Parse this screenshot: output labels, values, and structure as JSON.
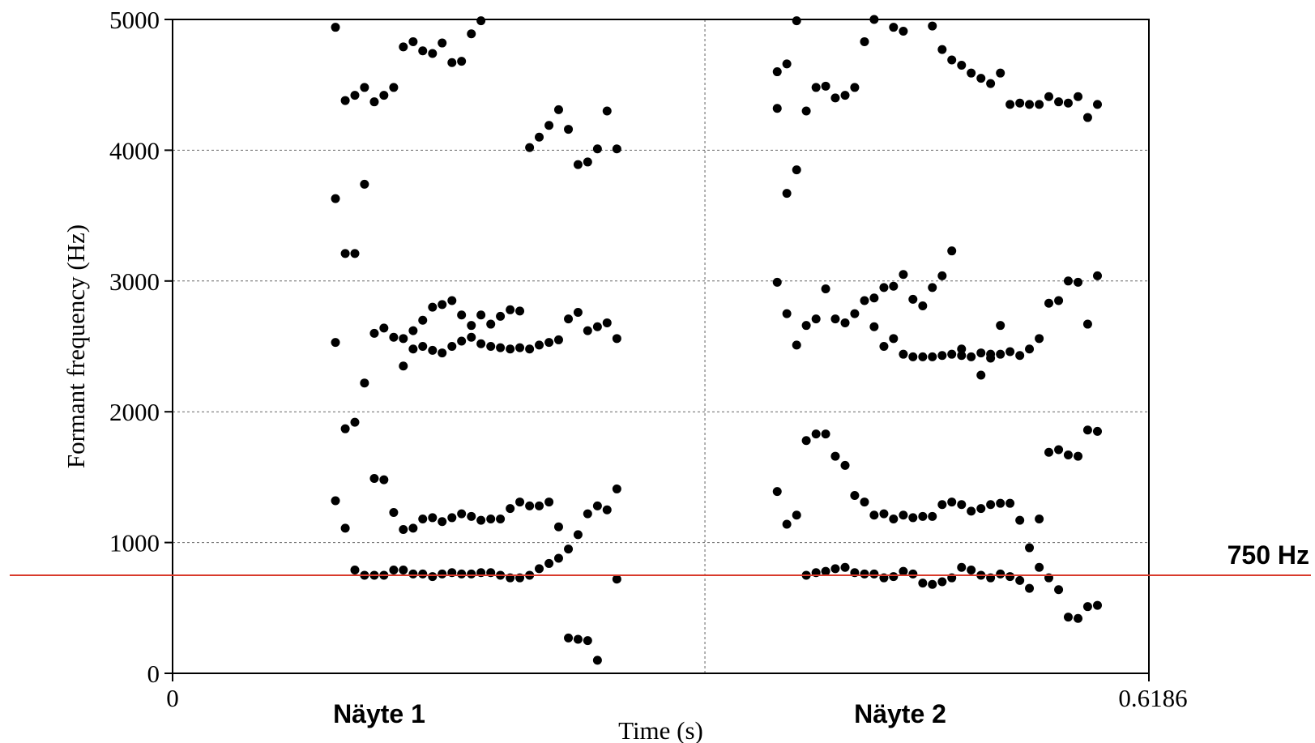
{
  "chart_data": {
    "type": "scatter",
    "xlabel": "Time (s)",
    "ylabel": "Formant frequency (Hz)",
    "xlim": [
      0,
      0.6186
    ],
    "ylim": [
      0,
      5000
    ],
    "x_tick_labels": [
      "0",
      "0.6186"
    ],
    "y_ticks": [
      0,
      1000,
      2000,
      3000,
      4000,
      5000
    ],
    "y_tick_labels": [
      "0",
      "1000",
      "2000",
      "3000",
      "4000",
      "5000"
    ],
    "grid": "dotted horizontal at y ticks, dotted vertical at segment boundary",
    "segment_boundary_x": 0.3373,
    "segments": [
      {
        "label": "Näyte 1",
        "x_center": 0.1309
      },
      {
        "label": "Näyte 2",
        "x_center": 0.461
      }
    ],
    "reference_line": {
      "value": 750,
      "label": "750 Hz",
      "color": "#d93a2b"
    },
    "marker_color": "#000000",
    "points": [
      [
        0.1032,
        4940
      ],
      [
        0.1032,
        3630
      ],
      [
        0.1032,
        2530
      ],
      [
        0.1032,
        1320
      ],
      [
        0.1094,
        4380
      ],
      [
        0.1094,
        3210
      ],
      [
        0.1094,
        1870
      ],
      [
        0.1094,
        1110
      ],
      [
        0.1155,
        4420
      ],
      [
        0.1155,
        3210
      ],
      [
        0.1155,
        1920
      ],
      [
        0.1155,
        790
      ],
      [
        0.1216,
        4480
      ],
      [
        0.1216,
        3740
      ],
      [
        0.1216,
        2220
      ],
      [
        0.1216,
        750
      ],
      [
        0.1278,
        4370
      ],
      [
        0.1278,
        2600
      ],
      [
        0.1278,
        1490
      ],
      [
        0.1278,
        750
      ],
      [
        0.1339,
        4420
      ],
      [
        0.1339,
        2640
      ],
      [
        0.1339,
        1480
      ],
      [
        0.1339,
        750
      ],
      [
        0.1401,
        4480
      ],
      [
        0.1401,
        2570
      ],
      [
        0.1401,
        1230
      ],
      [
        0.1401,
        790
      ],
      [
        0.1462,
        4790
      ],
      [
        0.1462,
        2560
      ],
      [
        0.1462,
        2350
      ],
      [
        0.1462,
        1100
      ],
      [
        0.1462,
        790
      ],
      [
        0.1524,
        4830
      ],
      [
        0.1524,
        2620
      ],
      [
        0.1524,
        2480
      ],
      [
        0.1524,
        1110
      ],
      [
        0.1524,
        760
      ],
      [
        0.1585,
        4760
      ],
      [
        0.1585,
        2700
      ],
      [
        0.1585,
        2500
      ],
      [
        0.1585,
        1180
      ],
      [
        0.1585,
        760
      ],
      [
        0.1647,
        4740
      ],
      [
        0.1647,
        2800
      ],
      [
        0.1647,
        2470
      ],
      [
        0.1647,
        1190
      ],
      [
        0.1647,
        740
      ],
      [
        0.1708,
        4820
      ],
      [
        0.1708,
        2820
      ],
      [
        0.1708,
        2450
      ],
      [
        0.1708,
        1160
      ],
      [
        0.1708,
        760
      ],
      [
        0.177,
        4670
      ],
      [
        0.177,
        2850
      ],
      [
        0.177,
        2500
      ],
      [
        0.177,
        1190
      ],
      [
        0.177,
        770
      ],
      [
        0.1831,
        4680
      ],
      [
        0.1831,
        2740
      ],
      [
        0.1831,
        2540
      ],
      [
        0.1831,
        1220
      ],
      [
        0.1831,
        760
      ],
      [
        0.1893,
        4890
      ],
      [
        0.1893,
        2660
      ],
      [
        0.1893,
        2570
      ],
      [
        0.1893,
        1200
      ],
      [
        0.1893,
        760
      ],
      [
        0.1954,
        4990
      ],
      [
        0.1954,
        2740
      ],
      [
        0.1954,
        2520
      ],
      [
        0.1954,
        1170
      ],
      [
        0.1954,
        770
      ],
      [
        0.2016,
        2670
      ],
      [
        0.2016,
        2500
      ],
      [
        0.2016,
        1180
      ],
      [
        0.2016,
        770
      ],
      [
        0.2077,
        2730
      ],
      [
        0.2077,
        2490
      ],
      [
        0.2077,
        1180
      ],
      [
        0.2077,
        750
      ],
      [
        0.2139,
        2780
      ],
      [
        0.2139,
        2480
      ],
      [
        0.2139,
        1260
      ],
      [
        0.2139,
        730
      ],
      [
        0.22,
        2770
      ],
      [
        0.22,
        2490
      ],
      [
        0.22,
        1310
      ],
      [
        0.22,
        730
      ],
      [
        0.2262,
        4020
      ],
      [
        0.2262,
        2480
      ],
      [
        0.2262,
        1280
      ],
      [
        0.2262,
        750
      ],
      [
        0.2323,
        4100
      ],
      [
        0.2323,
        2510
      ],
      [
        0.2323,
        1280
      ],
      [
        0.2323,
        800
      ],
      [
        0.2385,
        4190
      ],
      [
        0.2385,
        2530
      ],
      [
        0.2385,
        1310
      ],
      [
        0.2385,
        840
      ],
      [
        0.2446,
        4310
      ],
      [
        0.2446,
        2550
      ],
      [
        0.2446,
        1120
      ],
      [
        0.2446,
        880
      ],
      [
        0.2508,
        4160
      ],
      [
        0.2508,
        2710
      ],
      [
        0.2508,
        950
      ],
      [
        0.2508,
        270
      ],
      [
        0.2569,
        3890
      ],
      [
        0.2569,
        2760
      ],
      [
        0.2569,
        1060
      ],
      [
        0.2569,
        260
      ],
      [
        0.263,
        3910
      ],
      [
        0.263,
        2620
      ],
      [
        0.263,
        1220
      ],
      [
        0.263,
        250
      ],
      [
        0.2692,
        4010
      ],
      [
        0.2692,
        2650
      ],
      [
        0.2692,
        1280
      ],
      [
        0.2692,
        100
      ],
      [
        0.2753,
        4300
      ],
      [
        0.2753,
        2680
      ],
      [
        0.2753,
        1250
      ],
      [
        0.2815,
        4010
      ],
      [
        0.2815,
        2560
      ],
      [
        0.2815,
        1410
      ],
      [
        0.2815,
        720
      ],
      [
        0.3831,
        4600
      ],
      [
        0.3831,
        4320
      ],
      [
        0.3831,
        2990
      ],
      [
        0.3831,
        1390
      ],
      [
        0.3892,
        4660
      ],
      [
        0.3892,
        3670
      ],
      [
        0.3892,
        2750
      ],
      [
        0.3892,
        1140
      ],
      [
        0.3954,
        4990
      ],
      [
        0.3954,
        3850
      ],
      [
        0.3954,
        2510
      ],
      [
        0.3954,
        1210
      ],
      [
        0.4015,
        4300
      ],
      [
        0.4015,
        2660
      ],
      [
        0.4015,
        1780
      ],
      [
        0.4015,
        750
      ],
      [
        0.4077,
        4480
      ],
      [
        0.4077,
        2710
      ],
      [
        0.4077,
        1830
      ],
      [
        0.4077,
        770
      ],
      [
        0.4138,
        4490
      ],
      [
        0.4138,
        2940
      ],
      [
        0.4138,
        1830
      ],
      [
        0.4138,
        780
      ],
      [
        0.4199,
        4400
      ],
      [
        0.4199,
        2710
      ],
      [
        0.4199,
        1660
      ],
      [
        0.4199,
        800
      ],
      [
        0.4261,
        4420
      ],
      [
        0.4261,
        2680
      ],
      [
        0.4261,
        1590
      ],
      [
        0.4261,
        810
      ],
      [
        0.4322,
        4480
      ],
      [
        0.4322,
        2750
      ],
      [
        0.4322,
        1360
      ],
      [
        0.4322,
        770
      ],
      [
        0.4384,
        4830
      ],
      [
        0.4384,
        2850
      ],
      [
        0.4384,
        1310
      ],
      [
        0.4384,
        760
      ],
      [
        0.4445,
        5000
      ],
      [
        0.4445,
        2870
      ],
      [
        0.4445,
        2650
      ],
      [
        0.4445,
        1210
      ],
      [
        0.4445,
        760
      ],
      [
        0.4507,
        2950
      ],
      [
        0.4507,
        2500
      ],
      [
        0.4507,
        1220
      ],
      [
        0.4507,
        730
      ],
      [
        0.4568,
        4940
      ],
      [
        0.4568,
        2960
      ],
      [
        0.4568,
        2560
      ],
      [
        0.4568,
        1180
      ],
      [
        0.4568,
        740
      ],
      [
        0.463,
        4910
      ],
      [
        0.463,
        3050
      ],
      [
        0.463,
        2440
      ],
      [
        0.463,
        1210
      ],
      [
        0.463,
        780
      ],
      [
        0.4691,
        2860
      ],
      [
        0.4691,
        2420
      ],
      [
        0.4691,
        1190
      ],
      [
        0.4691,
        760
      ],
      [
        0.4753,
        2810
      ],
      [
        0.4753,
        2420
      ],
      [
        0.4753,
        1200
      ],
      [
        0.4753,
        690
      ],
      [
        0.4814,
        4950
      ],
      [
        0.4814,
        2950
      ],
      [
        0.4814,
        2420
      ],
      [
        0.4814,
        1200
      ],
      [
        0.4814,
        680
      ],
      [
        0.4876,
        4770
      ],
      [
        0.4876,
        3040
      ],
      [
        0.4876,
        2430
      ],
      [
        0.4876,
        1290
      ],
      [
        0.4876,
        700
      ],
      [
        0.4937,
        4690
      ],
      [
        0.4937,
        3230
      ],
      [
        0.4937,
        2440
      ],
      [
        0.4937,
        1310
      ],
      [
        0.4937,
        730
      ],
      [
        0.4999,
        4650
      ],
      [
        0.4999,
        2480
      ],
      [
        0.4999,
        2430
      ],
      [
        0.4999,
        1290
      ],
      [
        0.4999,
        810
      ],
      [
        0.506,
        4590
      ],
      [
        0.506,
        2420
      ],
      [
        0.506,
        1240
      ],
      [
        0.506,
        790
      ],
      [
        0.5122,
        4550
      ],
      [
        0.5122,
        2450
      ],
      [
        0.5122,
        2280
      ],
      [
        0.5122,
        1260
      ],
      [
        0.5122,
        750
      ],
      [
        0.5183,
        4510
      ],
      [
        0.5183,
        2440
      ],
      [
        0.5183,
        2410
      ],
      [
        0.5183,
        1290
      ],
      [
        0.5183,
        730
      ],
      [
        0.5245,
        4590
      ],
      [
        0.5245,
        2660
      ],
      [
        0.5245,
        2440
      ],
      [
        0.5245,
        1300
      ],
      [
        0.5245,
        760
      ],
      [
        0.5306,
        4350
      ],
      [
        0.5306,
        2460
      ],
      [
        0.5306,
        1300
      ],
      [
        0.5306,
        740
      ],
      [
        0.5368,
        4360
      ],
      [
        0.5368,
        2430
      ],
      [
        0.5368,
        1170
      ],
      [
        0.5368,
        710
      ],
      [
        0.5429,
        4350
      ],
      [
        0.5429,
        2480
      ],
      [
        0.5429,
        960
      ],
      [
        0.5429,
        650
      ],
      [
        0.5491,
        4350
      ],
      [
        0.5491,
        2560
      ],
      [
        0.5491,
        1180
      ],
      [
        0.5491,
        810
      ],
      [
        0.5552,
        4410
      ],
      [
        0.5552,
        2830
      ],
      [
        0.5552,
        1690
      ],
      [
        0.5552,
        730
      ],
      [
        0.5614,
        4370
      ],
      [
        0.5614,
        2850
      ],
      [
        0.5614,
        1710
      ],
      [
        0.5614,
        640
      ],
      [
        0.5675,
        4360
      ],
      [
        0.5675,
        3000
      ],
      [
        0.5675,
        1670
      ],
      [
        0.5675,
        430
      ],
      [
        0.5737,
        4410
      ],
      [
        0.5737,
        2990
      ],
      [
        0.5737,
        1660
      ],
      [
        0.5737,
        420
      ],
      [
        0.5798,
        4250
      ],
      [
        0.5798,
        2670
      ],
      [
        0.5798,
        1860
      ],
      [
        0.5798,
        510
      ],
      [
        0.586,
        4350
      ],
      [
        0.586,
        3040
      ],
      [
        0.586,
        1850
      ],
      [
        0.586,
        520
      ]
    ]
  }
}
